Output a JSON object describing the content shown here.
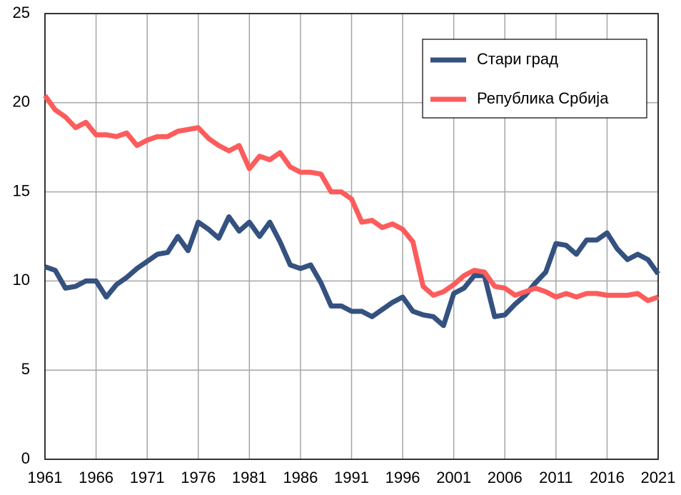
{
  "chart_data": {
    "type": "line",
    "x": [
      1961,
      1962,
      1963,
      1964,
      1965,
      1966,
      1967,
      1968,
      1969,
      1970,
      1971,
      1972,
      1973,
      1974,
      1975,
      1976,
      1977,
      1978,
      1979,
      1980,
      1981,
      1982,
      1983,
      1984,
      1985,
      1986,
      1987,
      1988,
      1989,
      1990,
      1991,
      1992,
      1993,
      1994,
      1995,
      1996,
      1997,
      1998,
      1999,
      2000,
      2001,
      2002,
      2003,
      2004,
      2005,
      2006,
      2007,
      2008,
      2009,
      2010,
      2011,
      2012,
      2013,
      2014,
      2015,
      2016,
      2017,
      2018,
      2019,
      2020,
      2021
    ],
    "series": [
      {
        "name": "Стари град",
        "color": "#345180",
        "values": [
          10.8,
          10.6,
          9.6,
          9.7,
          10.0,
          10.0,
          9.1,
          9.8,
          10.2,
          10.7,
          11.1,
          11.5,
          11.6,
          12.5,
          11.7,
          13.3,
          12.9,
          12.4,
          13.6,
          12.8,
          13.3,
          12.5,
          13.3,
          12.2,
          10.9,
          10.7,
          10.9,
          9.9,
          8.6,
          8.6,
          8.3,
          8.3,
          8.0,
          8.4,
          8.8,
          9.1,
          8.3,
          8.1,
          8.0,
          7.5,
          9.3,
          9.6,
          10.3,
          10.3,
          8.0,
          8.1,
          8.7,
          9.2,
          9.9,
          10.5,
          12.1,
          12.0,
          11.5,
          12.3,
          12.3,
          12.7,
          11.8,
          11.2,
          11.5,
          11.2,
          10.4
        ]
      },
      {
        "name": "Република Србија",
        "color": "#fd5c5c",
        "values": [
          20.4,
          19.6,
          19.2,
          18.6,
          18.9,
          18.2,
          18.2,
          18.1,
          18.3,
          17.6,
          17.9,
          18.1,
          18.1,
          18.4,
          18.5,
          18.6,
          18.0,
          17.6,
          17.3,
          17.6,
          16.3,
          17.0,
          16.8,
          17.2,
          16.4,
          16.1,
          16.1,
          16.0,
          15.0,
          15.0,
          14.6,
          13.3,
          13.4,
          13.0,
          13.2,
          12.9,
          12.2,
          9.7,
          9.2,
          9.4,
          9.8,
          10.3,
          10.6,
          10.5,
          9.7,
          9.6,
          9.2,
          9.4,
          9.6,
          9.4,
          9.1,
          9.3,
          9.1,
          9.3,
          9.3,
          9.2,
          9.2,
          9.2,
          9.3,
          8.9,
          9.1
        ]
      }
    ],
    "xlim": [
      1961,
      2021
    ],
    "xticks": [
      1961,
      1966,
      1971,
      1976,
      1981,
      1986,
      1991,
      1996,
      2001,
      2006,
      2011,
      2016,
      2021
    ],
    "ylim": [
      0,
      25
    ],
    "yticks": [
      0,
      5,
      10,
      15,
      20,
      25
    ],
    "grid": true,
    "legend": "upper right"
  }
}
